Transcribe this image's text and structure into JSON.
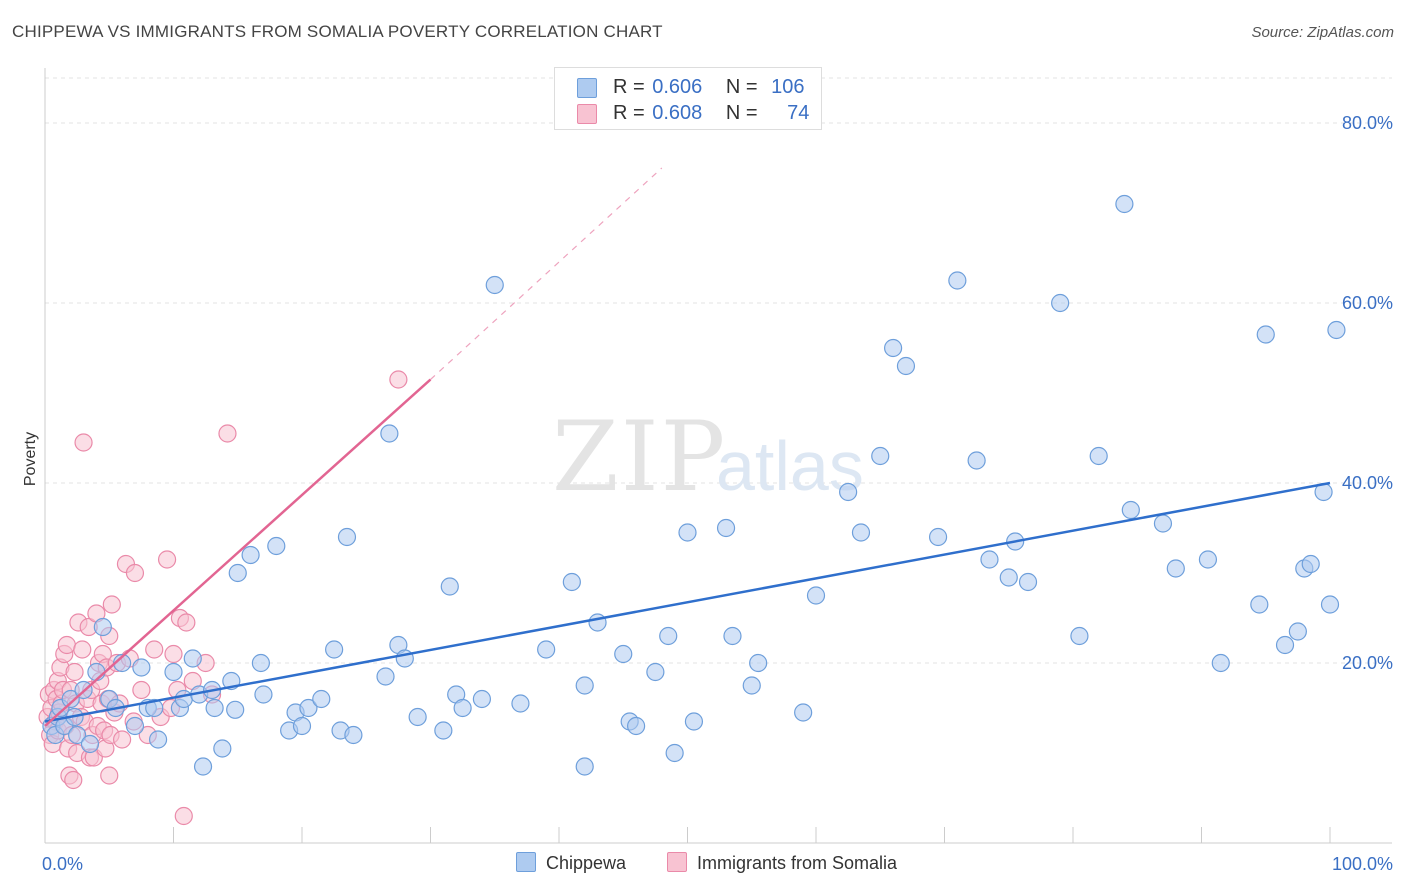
{
  "title": "CHIPPEWA VS IMMIGRANTS FROM SOMALIA POVERTY CORRELATION CHART",
  "source": "Source: ZipAtlas.com",
  "watermark": {
    "zip": "ZIP",
    "atlas": "atlas"
  },
  "legend_top": {
    "rows": [
      {
        "r_label": "R =",
        "r_value": "0.606",
        "n_label": "N =",
        "n_value": "106"
      },
      {
        "r_label": "R =",
        "r_value": "0.608",
        "n_label": "N =",
        "n_value": "74"
      }
    ]
  },
  "legend_bottom": {
    "items": [
      "Chippewa",
      "Immigrants from Somalia"
    ]
  },
  "colors": {
    "blue_fill": "#aecbf0",
    "blue_stroke": "#6e9fdb",
    "blue_line": "#2f6fcc",
    "pink_fill": "#f8c3d2",
    "pink_stroke": "#ea8aa9",
    "pink_line": "#e26592",
    "axis_text": "#3a6fc4",
    "grid": "#e3e3e3"
  },
  "chart_data": {
    "type": "scatter",
    "title": "CHIPPEWA VS IMMIGRANTS FROM SOMALIA POVERTY CORRELATION CHART",
    "xlabel": "",
    "ylabel": "Poverty",
    "xlim": [
      0,
      100
    ],
    "ylim": [
      0,
      85
    ],
    "x_tick_labels": [
      "0.0%",
      "100.0%"
    ],
    "y_ticks": [
      20,
      40,
      60,
      80
    ],
    "y_tick_labels": [
      "20.0%",
      "40.0%",
      "60.0%",
      "80.0%"
    ],
    "grid": true,
    "legend_position": "top-center",
    "series": [
      {
        "name": "Chippewa",
        "r": 0.606,
        "n": 106,
        "trend": {
          "x": [
            0,
            100
          ],
          "y": [
            13.5,
            40
          ],
          "style": "solid"
        },
        "points": [
          [
            0.5,
            13
          ],
          [
            0.8,
            12
          ],
          [
            1,
            14
          ],
          [
            1.2,
            15
          ],
          [
            1.5,
            13
          ],
          [
            2,
            16
          ],
          [
            2.3,
            14
          ],
          [
            2.5,
            12
          ],
          [
            3,
            17
          ],
          [
            3.5,
            11
          ],
          [
            4,
            19
          ],
          [
            4.5,
            24
          ],
          [
            5,
            16
          ],
          [
            5.5,
            15
          ],
          [
            6,
            20
          ],
          [
            7,
            13
          ],
          [
            7.5,
            19.5
          ],
          [
            8,
            15
          ],
          [
            8.5,
            15
          ],
          [
            8.8,
            11.5
          ],
          [
            10,
            19
          ],
          [
            10.5,
            15
          ],
          [
            10.8,
            16
          ],
          [
            11.5,
            20.5
          ],
          [
            12,
            16.5
          ],
          [
            12.3,
            8.5
          ],
          [
            13,
            17
          ],
          [
            13.2,
            15
          ],
          [
            13.8,
            10.5
          ],
          [
            14.5,
            18
          ],
          [
            14.8,
            14.8
          ],
          [
            15,
            30
          ],
          [
            16,
            32
          ],
          [
            16.8,
            20
          ],
          [
            17,
            16.5
          ],
          [
            18,
            33
          ],
          [
            19,
            12.5
          ],
          [
            19.5,
            14.5
          ],
          [
            20,
            13
          ],
          [
            20.5,
            15
          ],
          [
            21.5,
            16
          ],
          [
            22.5,
            21.5
          ],
          [
            23,
            12.5
          ],
          [
            23.5,
            34
          ],
          [
            24,
            12
          ],
          [
            26.5,
            18.5
          ],
          [
            26.8,
            45.5
          ],
          [
            27.5,
            22
          ],
          [
            28,
            20.5
          ],
          [
            29,
            14
          ],
          [
            31,
            12.5
          ],
          [
            31.5,
            28.5
          ],
          [
            32,
            16.5
          ],
          [
            32.5,
            15
          ],
          [
            34,
            16
          ],
          [
            35,
            62
          ],
          [
            37,
            15.5
          ],
          [
            39,
            21.5
          ],
          [
            41,
            29
          ],
          [
            42,
            17.5
          ],
          [
            42,
            8.5
          ],
          [
            43,
            24.5
          ],
          [
            45,
            21
          ],
          [
            45.5,
            13.5
          ],
          [
            46,
            13
          ],
          [
            47.5,
            19
          ],
          [
            48.5,
            23
          ],
          [
            49,
            10
          ],
          [
            50,
            34.5
          ],
          [
            50.5,
            13.5
          ],
          [
            53,
            35
          ],
          [
            53.5,
            23
          ],
          [
            55,
            17.5
          ],
          [
            55.5,
            20
          ],
          [
            59,
            14.5
          ],
          [
            60,
            27.5
          ],
          [
            62.5,
            39
          ],
          [
            63.5,
            34.5
          ],
          [
            65,
            43
          ],
          [
            66,
            55
          ],
          [
            67,
            53
          ],
          [
            69.5,
            34
          ],
          [
            71,
            62.5
          ],
          [
            72.5,
            42.5
          ],
          [
            73.5,
            31.5
          ],
          [
            75,
            29.5
          ],
          [
            75.5,
            33.5
          ],
          [
            76.5,
            29
          ],
          [
            79,
            60
          ],
          [
            80.5,
            23
          ],
          [
            82,
            43
          ],
          [
            84,
            71
          ],
          [
            84.5,
            37
          ],
          [
            87,
            35.5
          ],
          [
            88,
            30.5
          ],
          [
            90.5,
            31.5
          ],
          [
            91.5,
            20
          ],
          [
            94.5,
            26.5
          ],
          [
            95,
            56.5
          ],
          [
            96.5,
            22
          ],
          [
            97.5,
            23.5
          ],
          [
            98,
            30.5
          ],
          [
            98.5,
            31
          ],
          [
            99.5,
            39
          ],
          [
            100,
            26.5
          ],
          [
            100.5,
            57
          ]
        ]
      },
      {
        "name": "Immigrants from Somalia",
        "r": 0.608,
        "n": 74,
        "trend": {
          "x": [
            0,
            30
          ],
          "y": [
            13,
            51.5
          ],
          "style": "solid",
          "extended_dashed_to": [
            48,
            75
          ]
        },
        "points": [
          [
            0.2,
            14
          ],
          [
            0.3,
            16.5
          ],
          [
            0.4,
            12
          ],
          [
            0.5,
            15
          ],
          [
            0.6,
            11
          ],
          [
            0.7,
            17
          ],
          [
            0.8,
            13.5
          ],
          [
            0.9,
            16
          ],
          [
            1,
            18
          ],
          [
            1,
            12.5
          ],
          [
            1.1,
            14.5
          ],
          [
            1.2,
            19.5
          ],
          [
            1.3,
            15.5
          ],
          [
            1.4,
            17
          ],
          [
            1.5,
            21
          ],
          [
            1.6,
            13
          ],
          [
            1.7,
            22
          ],
          [
            1.8,
            10.5
          ],
          [
            1.9,
            7.5
          ],
          [
            2,
            17
          ],
          [
            2.1,
            12
          ],
          [
            2.2,
            7
          ],
          [
            2.3,
            19
          ],
          [
            2.4,
            15.5
          ],
          [
            2.5,
            10
          ],
          [
            2.6,
            24.5
          ],
          [
            2.8,
            14
          ],
          [
            2.9,
            21.5
          ],
          [
            3,
            44.5
          ],
          [
            3.1,
            13.5
          ],
          [
            3.3,
            16
          ],
          [
            3.4,
            24
          ],
          [
            3.5,
            9.5
          ],
          [
            3.6,
            17
          ],
          [
            3.7,
            12
          ],
          [
            3.8,
            9.5
          ],
          [
            4,
            25.5
          ],
          [
            4.1,
            13
          ],
          [
            4.2,
            20
          ],
          [
            4.3,
            18
          ],
          [
            4.4,
            15.5
          ],
          [
            4.5,
            21
          ],
          [
            4.6,
            12.5
          ],
          [
            4.7,
            10.5
          ],
          [
            4.8,
            19.5
          ],
          [
            4.9,
            16
          ],
          [
            5,
            23
          ],
          [
            5,
            7.5
          ],
          [
            5.1,
            12
          ],
          [
            5.2,
            26.5
          ],
          [
            5.4,
            14.5
          ],
          [
            5.6,
            20
          ],
          [
            5.8,
            15.5
          ],
          [
            6,
            11.5
          ],
          [
            6.3,
            31
          ],
          [
            6.6,
            20.5
          ],
          [
            6.9,
            13.5
          ],
          [
            7,
            30
          ],
          [
            7.5,
            17
          ],
          [
            8,
            12
          ],
          [
            8.5,
            21.5
          ],
          [
            9,
            14
          ],
          [
            9.5,
            31.5
          ],
          [
            9.8,
            15
          ],
          [
            10,
            21
          ],
          [
            10.3,
            17
          ],
          [
            10.5,
            25
          ],
          [
            11,
            24.5
          ],
          [
            11.5,
            18
          ],
          [
            12.5,
            20
          ],
          [
            13,
            16.5
          ],
          [
            10.8,
            3
          ],
          [
            14.2,
            45.5
          ],
          [
            27.5,
            51.5
          ]
        ]
      }
    ]
  }
}
